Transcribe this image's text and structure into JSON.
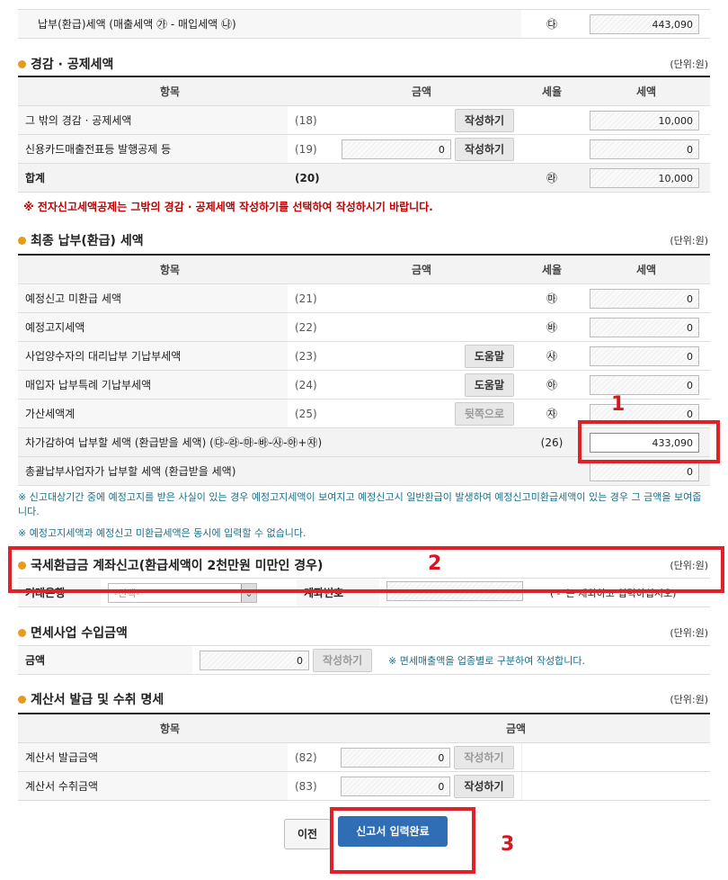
{
  "top_row": {
    "label": "납부(환급)세액 (매출세액 ㉮ - 매입세액 ㉯)",
    "mark": "㉰",
    "value": "443,090"
  },
  "headers": {
    "item": "항목",
    "amount": "금액",
    "rate": "세율",
    "tax": "세액"
  },
  "unit": "(단위:원)",
  "write_btn": "작성하기",
  "help_btn": "도움말",
  "back_btn": "뒷쪽으로",
  "deduction": {
    "title": "경감 · 공제세액",
    "rows": [
      {
        "label": "그 밖의 경감 · 공제세액",
        "no": "(18)",
        "amount": "",
        "mark": "",
        "tax": "10,000"
      },
      {
        "label": "신용카드매출전표등 발행공제 등",
        "no": "(19)",
        "amount": "0",
        "mark": "",
        "tax": "0"
      },
      {
        "label": "합계",
        "no": "(20)",
        "mark": "㉱",
        "tax": "10,000"
      }
    ],
    "note": "※ 전자신고세액공제는 그밖의 경감 · 공제세액 작성하기를 선택하여 작성하시기 바랍니다."
  },
  "final": {
    "title": "최종 납부(환급) 세액",
    "rows": [
      {
        "label": "예정신고 미환급 세액",
        "no": "(21)",
        "mark": "㉲",
        "tax": "0"
      },
      {
        "label": "예정고지세액",
        "no": "(22)",
        "mark": "㉳",
        "tax": "0"
      },
      {
        "label": "사업양수자의 대리납부 기납부세액",
        "no": "(23)",
        "mark": "㉴",
        "tax": "0"
      },
      {
        "label": "매입자 납부특례 기납부세액",
        "no": "(24)",
        "mark": "㉵",
        "tax": "0"
      },
      {
        "label": "가산세액계",
        "no": "(25)",
        "mark": "㉶",
        "tax": "0"
      }
    ],
    "payable": {
      "label": "차가감하여 납부할 세액 (환급받을 세액) (㉰-㉱-㉲-㉳-㉴-㉵+㉶)",
      "no": "(26)",
      "tax": "433,090"
    },
    "consolidated": {
      "label": "총괄납부사업자가 납부할 세액 (환급받을 세액)",
      "tax": "0"
    },
    "note1": "※ 신고대상기간 중에 예정고지를 받은 사실이 있는 경우 예정고지세액이 보여지고 예정신고시 일반환급이 발생하여 예정신고미환급세액이 있는 경우 그 금액을 보여줍니다.",
    "note2": "※ 예정고지세액과 예정신고 미환급세액은 동시에 입력할 수 없습니다."
  },
  "refund": {
    "title": "국세환급금 계좌신고(환급세액이 2천만원 미만인 경우)",
    "bank_label": "거래은행",
    "bank_value": "-선택-",
    "account_label": "계좌번호",
    "account_value": "",
    "hint": "('-' 는 제외하고 입력하십시오)"
  },
  "exempt": {
    "title": "면세사업 수입금액",
    "label": "금액",
    "value": "0",
    "note": "※ 면세매출액을 업종별로 구분하여 작성합니다."
  },
  "invoice": {
    "title": "계산서 발급 및 수취 명세",
    "rows": [
      {
        "label": "계산서 발급금액",
        "no": "(82)",
        "value": "0"
      },
      {
        "label": "계산서 수취금액",
        "no": "(83)",
        "value": "0"
      }
    ]
  },
  "buttons": {
    "prev": "이전",
    "complete": "신고서 입력완료"
  },
  "annotations": [
    "1",
    "2",
    "3"
  ],
  "colors": {
    "annotation": "#e0212a",
    "primary_button": "#2f6db5",
    "section_dot": "#e89a1c",
    "warning": "#c00000"
  }
}
